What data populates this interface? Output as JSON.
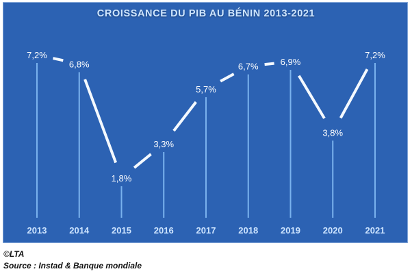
{
  "chart_data": {
    "type": "line",
    "title": "CROISSANCE DU PIB AU BÉNIN 2013-2021",
    "xlabel": "",
    "ylabel": "",
    "categories": [
      "2013",
      "2014",
      "2015",
      "2016",
      "2017",
      "2018",
      "2019",
      "2020",
      "2021"
    ],
    "series": [
      {
        "name": "Croissance du PIB (%)",
        "values": [
          7.2,
          6.8,
          1.8,
          3.3,
          5.7,
          6.7,
          6.9,
          3.8,
          7.2
        ],
        "labels": [
          "7,2%",
          "6,8%",
          "1,8%",
          "3,3%",
          "5,7%",
          "6,7%",
          "6,9%",
          "3,8%",
          "7,2%"
        ]
      }
    ],
    "ylim": [
      0,
      8
    ],
    "grid": false,
    "legend": "none",
    "drop_lines": true,
    "colors": {
      "background": "#2c62b3",
      "line": "#f4f9ff",
      "drop_line": "#7ab2ee",
      "title": "#cfe6ff",
      "tick_label": "#cde4ff"
    }
  },
  "footer": {
    "credit": "©LTA",
    "source": "Source : Instad & Banque mondiale"
  }
}
